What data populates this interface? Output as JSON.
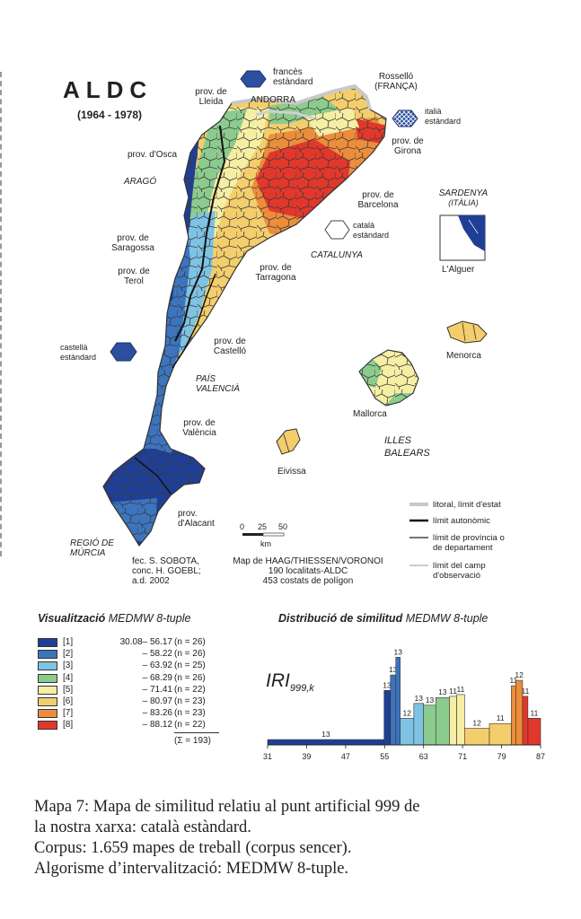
{
  "map": {
    "title": "ALDC",
    "years": "(1964 - 1978)",
    "labels": {
      "lleida": [
        "prov. de",
        "Lleida"
      ],
      "andorra": "ANDORRA",
      "frances": [
        "francès",
        "estàndard"
      ],
      "rossello": [
        "Rosselló",
        "(FRANÇA)"
      ],
      "italia": [
        "italià",
        "estàndard"
      ],
      "girona": [
        "prov. de",
        "Girona"
      ],
      "osca": "prov. d'Osca",
      "arago": "ARAGÓ",
      "barcelona": [
        "prov. de",
        "Barcelona"
      ],
      "catala": [
        "català",
        "estàndard"
      ],
      "catalunya": "CATALUNYA",
      "sardenya": [
        "SARDENYA",
        "(ITÀLIA)"
      ],
      "alguer": "L'Alguer",
      "saragossa": [
        "prov. de",
        "Saragossa"
      ],
      "terol": [
        "prov. de",
        "Terol"
      ],
      "tarragona": [
        "prov. de",
        "Tarragona"
      ],
      "castella": [
        "castellà",
        "estàndard"
      ],
      "castello": [
        "prov. de",
        "Castelló"
      ],
      "menorca": "Menorca",
      "pais_valencia": [
        "PAÍS",
        "VALENCIÀ"
      ],
      "mallorca": "Mallorca",
      "valencia": [
        "prov. de",
        "València"
      ],
      "illes_balears": [
        "ILLES",
        "BALEARS"
      ],
      "eivissa": "Eivissa",
      "alacant": [
        "prov.",
        "d'Alacant"
      ],
      "murcia": [
        "REGIÓ DE",
        "MÚRCIA"
      ]
    },
    "scale": {
      "ticks": [
        "0",
        "25",
        "50"
      ],
      "unit": "km"
    },
    "line_legend": [
      {
        "label": [
          "litoral, límit d'estat"
        ],
        "color": "#c8c8c8",
        "width": 4
      },
      {
        "label": [
          "límit autonòmic"
        ],
        "color": "#111111",
        "width": 2.4
      },
      {
        "label": [
          "límit de província o",
          "de departament"
        ],
        "color": "#222222",
        "width": 1.3
      },
      {
        "label": [
          "límit del camp",
          "d'observació"
        ],
        "color": "#777777",
        "width": 0.8
      }
    ],
    "credits_left": [
      "fec. S. SOBOTA,",
      "conc. H. GOEBL;",
      "a.d. 2002"
    ],
    "credits_right": [
      "Map de HAAG/THIESSEN/VORONOI",
      "190 localitats-ALDC",
      "453 costats de polígon"
    ]
  },
  "legend": {
    "title_bold": "Visualització",
    "title_italic": "MEDMW 8-tuple",
    "classes": [
      {
        "id": "[1]",
        "range": "30.08– 56.17",
        "n": "(n =  26)",
        "color": "#1f3f96"
      },
      {
        "id": "[2]",
        "range": "– 58.22",
        "n": "(n =  26)",
        "color": "#3c74be"
      },
      {
        "id": "[3]",
        "range": "– 63.92",
        "n": "(n =  25)",
        "color": "#7ec3e4"
      },
      {
        "id": "[4]",
        "range": "– 68.29",
        "n": "(n =  26)",
        "color": "#8ccb8e"
      },
      {
        "id": "[5]",
        "range": "– 71.41",
        "n": "(n =  22)",
        "color": "#f6eea3"
      },
      {
        "id": "[6]",
        "range": "– 80.97",
        "n": "(n =  23)",
        "color": "#f4ce6c"
      },
      {
        "id": "[7]",
        "range": "– 83.26",
        "n": "(n =  23)",
        "color": "#ec8d3b"
      },
      {
        "id": "[8]",
        "range": "– 88.12",
        "n": "(n =  22)",
        "color": "#e2372b"
      }
    ],
    "total": "(Σ = 193)"
  },
  "chart_data": {
    "type": "bar",
    "title_bold": "Distribució de similitud",
    "title_italic": "MEDMW 8-tuple",
    "ylabel": "IRI",
    "ylabel_sub": "999,k",
    "xlim": [
      31,
      87
    ],
    "xticks": [
      "31",
      "39",
      "47",
      "55",
      "63",
      "71",
      "79",
      "87"
    ],
    "bars": [
      {
        "from": 31.0,
        "to": 54.9,
        "height": 0.9,
        "label": "13",
        "class": 1
      },
      {
        "from": 54.9,
        "to": 56.1,
        "height": 9.2,
        "label": "13",
        "class": 1
      },
      {
        "from": 56.2,
        "to": 57.3,
        "height": 11.8,
        "label": "13",
        "class": 2
      },
      {
        "from": 57.3,
        "to": 58.2,
        "height": 14.8,
        "label": "13",
        "class": 2
      },
      {
        "from": 58.2,
        "to": 61.0,
        "height": 4.5,
        "label": "12",
        "class": 3
      },
      {
        "from": 61.0,
        "to": 63.0,
        "height": 7.0,
        "label": "13",
        "class": 3
      },
      {
        "from": 63.0,
        "to": 65.5,
        "height": 6.7,
        "label": "13",
        "class": 4
      },
      {
        "from": 65.5,
        "to": 68.3,
        "height": 8.0,
        "label": "13",
        "class": 4
      },
      {
        "from": 68.3,
        "to": 69.8,
        "height": 8.2,
        "label": "11",
        "class": 5
      },
      {
        "from": 69.8,
        "to": 71.4,
        "height": 8.5,
        "label": "11",
        "class": 5
      },
      {
        "from": 71.4,
        "to": 76.5,
        "height": 2.8,
        "label": "12",
        "class": 6
      },
      {
        "from": 76.5,
        "to": 81.0,
        "height": 3.6,
        "label": "11",
        "class": 6
      },
      {
        "from": 81.0,
        "to": 81.9,
        "height": 10.0,
        "label": "11",
        "class": 7
      },
      {
        "from": 81.9,
        "to": 83.3,
        "height": 10.9,
        "label": "12",
        "class": 7
      },
      {
        "from": 83.3,
        "to": 84.4,
        "height": 8.2,
        "label": "11",
        "class": 8
      },
      {
        "from": 84.4,
        "to": 87.0,
        "height": 4.5,
        "label": "11",
        "class": 8
      }
    ]
  },
  "caption": [
    "Mapa 7:  Mapa de similitud relatiu al punt artificial 999 de",
    "la nostra xarxa: català estàndard.",
    "Corpus:  1.659 mapes de treball (corpus sencer).",
    "Algorisme d’intervalització:  MEDMW 8-tuple."
  ]
}
